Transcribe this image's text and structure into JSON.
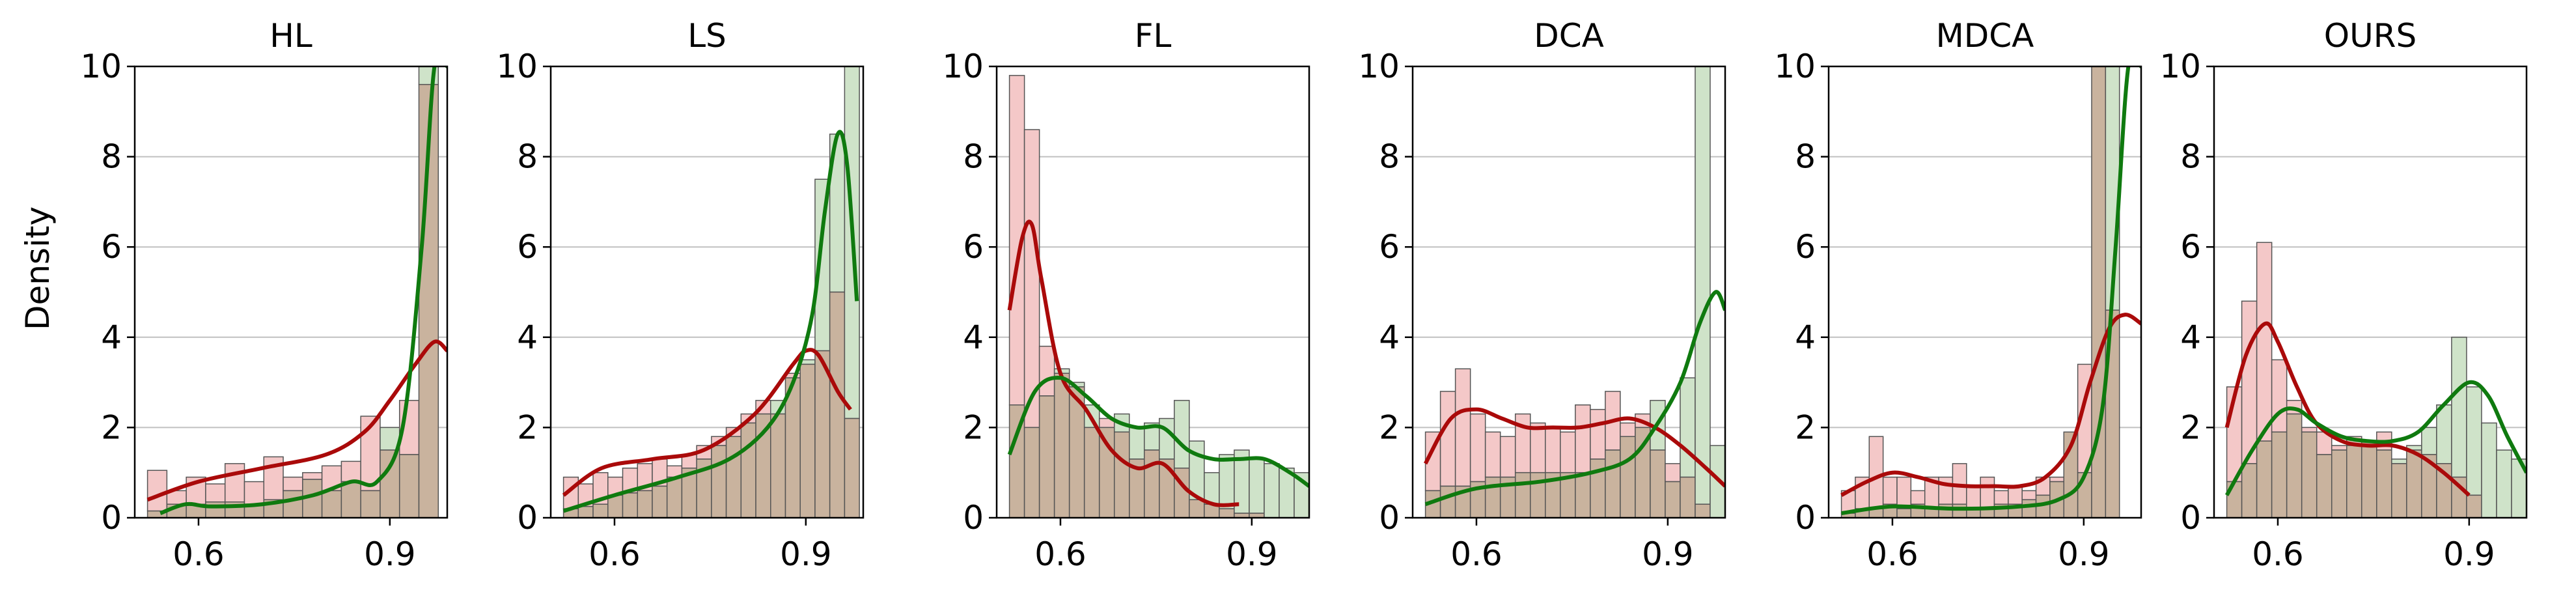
{
  "figure": {
    "ylabel": "Density",
    "colors": {
      "incorrect_kde": "#aa0a0a",
      "correct_kde": "#0f7a0f",
      "incorrect_bar": "#f4c8c8",
      "correct_bar": "#cfe3c9",
      "overlap_bar": "#c9b39e",
      "edge": "#555555",
      "grid": "#c0c0c0"
    }
  },
  "chart_data": [
    {
      "type": "bar",
      "title": "HL",
      "xlim": [
        0.5,
        0.99
      ],
      "ylim": [
        0,
        10
      ],
      "xticks": [
        0.6,
        0.9
      ],
      "xtick_labels": [
        "0.6",
        "0.9"
      ],
      "yticks": [
        0,
        2,
        4,
        6,
        8,
        10
      ],
      "ytick_labels": [
        "0",
        "2",
        "4",
        "6",
        "8",
        "10"
      ],
      "grid": "y",
      "bins_x0": 0.52,
      "bin_width": 0.0304,
      "series": [
        {
          "role": "incorrect",
          "values": [
            1.05,
            0.6,
            0.9,
            0.75,
            1.2,
            0.8,
            1.35,
            0.9,
            1.0,
            1.15,
            1.25,
            2.25,
            1.5,
            2.6,
            9.6
          ]
        },
        {
          "role": "correct",
          "values": [
            0.15,
            0.3,
            0.3,
            0.35,
            0.35,
            0.3,
            0.4,
            0.6,
            0.85,
            0.6,
            0.8,
            0.6,
            2.0,
            1.4,
            10.0
          ]
        }
      ],
      "kde": [
        {
          "role": "incorrect",
          "x": [
            0.52,
            0.6,
            0.7,
            0.8,
            0.86,
            0.9,
            0.94,
            0.97,
            0.99
          ],
          "y": [
            0.4,
            0.8,
            1.1,
            1.4,
            1.9,
            2.6,
            3.4,
            3.9,
            3.7
          ]
        },
        {
          "role": "correct",
          "x": [
            0.54,
            0.58,
            0.62,
            0.7,
            0.78,
            0.84,
            0.88,
            0.92,
            0.95,
            0.97,
            0.99
          ],
          "y": [
            0.1,
            0.3,
            0.25,
            0.3,
            0.5,
            0.8,
            0.8,
            2.0,
            6.0,
            10.0,
            10.0
          ]
        }
      ]
    },
    {
      "type": "bar",
      "title": "LS",
      "xlim": [
        0.5,
        0.99
      ],
      "ylim": [
        0,
        10
      ],
      "xticks": [
        0.6,
        0.9
      ],
      "xtick_labels": [
        "0.6",
        "0.9"
      ],
      "yticks": [
        0,
        2,
        4,
        6,
        8,
        10
      ],
      "ytick_labels": [
        "0",
        "2",
        "4",
        "6",
        "8",
        "10"
      ],
      "grid": "y",
      "bins_x0": 0.52,
      "bin_width": 0.0232,
      "series": [
        {
          "role": "incorrect",
          "values": [
            0.9,
            0.75,
            1.0,
            0.9,
            1.1,
            1.2,
            1.3,
            1.15,
            1.4,
            1.6,
            1.8,
            2.0,
            2.3,
            2.6,
            2.3,
            3.2,
            3.4,
            3.7,
            5.0,
            2.2
          ]
        },
        {
          "role": "correct",
          "values": [
            0.2,
            0.25,
            0.3,
            0.5,
            0.55,
            0.6,
            0.7,
            0.9,
            1.1,
            1.3,
            1.6,
            1.8,
            2.1,
            2.3,
            2.6,
            3.1,
            3.5,
            7.5,
            8.5,
            10.0
          ]
        }
      ],
      "kde": [
        {
          "role": "incorrect",
          "x": [
            0.52,
            0.58,
            0.66,
            0.74,
            0.82,
            0.88,
            0.9,
            0.92,
            0.95,
            0.97
          ],
          "y": [
            0.5,
            1.1,
            1.3,
            1.5,
            2.3,
            3.4,
            3.7,
            3.6,
            2.8,
            2.4
          ]
        },
        {
          "role": "correct",
          "x": [
            0.52,
            0.6,
            0.7,
            0.78,
            0.84,
            0.88,
            0.91,
            0.93,
            0.95,
            0.965,
            0.98
          ],
          "y": [
            0.15,
            0.5,
            0.9,
            1.3,
            2.0,
            3.0,
            4.5,
            6.8,
            8.5,
            7.8,
            4.8
          ]
        }
      ]
    },
    {
      "type": "bar",
      "title": "FL",
      "xlim": [
        0.5,
        0.99
      ],
      "ylim": [
        0,
        10
      ],
      "xticks": [
        0.6,
        0.9
      ],
      "xtick_labels": [
        "0.6",
        "0.9"
      ],
      "yticks": [
        0,
        2,
        4,
        6,
        8,
        10
      ],
      "ytick_labels": [
        "0",
        "2",
        "4",
        "6",
        "8",
        "10"
      ],
      "grid": "y",
      "bins_x0": 0.52,
      "bin_width": 0.0235,
      "series": [
        {
          "role": "incorrect",
          "values": [
            9.8,
            8.6,
            3.8,
            3.2,
            2.9,
            2.0,
            2.2,
            1.9,
            1.3,
            1.5,
            1.3,
            1.1,
            0.4,
            0.3,
            0.2,
            0.1,
            0.1,
            0.0,
            0.0,
            0.0
          ]
        },
        {
          "role": "correct",
          "values": [
            2.5,
            2.0,
            2.7,
            3.3,
            3.0,
            2.5,
            2.0,
            2.3,
            2.0,
            2.1,
            2.2,
            2.6,
            1.7,
            1.0,
            1.4,
            1.5,
            1.3,
            1.2,
            1.1,
            1.0
          ]
        }
      ],
      "kde": [
        {
          "role": "incorrect",
          "x": [
            0.52,
            0.54,
            0.555,
            0.57,
            0.6,
            0.64,
            0.68,
            0.72,
            0.76,
            0.8,
            0.84,
            0.88
          ],
          "y": [
            4.6,
            6.2,
            6.5,
            5.3,
            3.2,
            2.4,
            1.5,
            1.1,
            1.2,
            0.6,
            0.3,
            0.3
          ]
        },
        {
          "role": "correct",
          "x": [
            0.52,
            0.56,
            0.6,
            0.64,
            0.68,
            0.72,
            0.76,
            0.8,
            0.84,
            0.88,
            0.92,
            0.96,
            0.99
          ],
          "y": [
            1.4,
            2.8,
            3.1,
            2.7,
            2.2,
            2.0,
            2.0,
            1.5,
            1.3,
            1.3,
            1.3,
            1.0,
            0.7
          ]
        }
      ]
    },
    {
      "type": "bar",
      "title": "DCA",
      "xlim": [
        0.5,
        0.99
      ],
      "ylim": [
        0,
        10
      ],
      "xticks": [
        0.6,
        0.9
      ],
      "xtick_labels": [
        "0.6",
        "0.9"
      ],
      "yticks": [
        0,
        2,
        4,
        6,
        8,
        10
      ],
      "ytick_labels": [
        "0",
        "2",
        "4",
        "6",
        "8",
        "10"
      ],
      "grid": "y",
      "bins_x0": 0.52,
      "bin_width": 0.0235,
      "series": [
        {
          "role": "incorrect",
          "values": [
            1.9,
            2.8,
            3.3,
            2.3,
            1.9,
            1.8,
            2.3,
            2.1,
            2.0,
            1.9,
            2.5,
            2.4,
            2.8,
            2.1,
            2.3,
            1.5,
            1.2,
            0.9,
            0.3,
            0.0
          ]
        },
        {
          "role": "correct",
          "values": [
            0.6,
            0.7,
            0.7,
            0.8,
            0.9,
            0.9,
            1.0,
            1.0,
            1.0,
            1.0,
            1.0,
            1.3,
            1.5,
            1.8,
            2.0,
            2.6,
            0.8,
            3.1,
            10.0,
            1.6
          ]
        }
      ],
      "kde": [
        {
          "role": "incorrect",
          "x": [
            0.52,
            0.56,
            0.6,
            0.64,
            0.68,
            0.72,
            0.76,
            0.8,
            0.84,
            0.88,
            0.92,
            0.96,
            0.99
          ],
          "y": [
            1.2,
            2.2,
            2.4,
            2.2,
            2.0,
            2.0,
            2.0,
            2.1,
            2.2,
            2.0,
            1.6,
            1.1,
            0.7
          ]
        },
        {
          "role": "correct",
          "x": [
            0.52,
            0.6,
            0.7,
            0.78,
            0.84,
            0.88,
            0.92,
            0.95,
            0.975,
            0.99
          ],
          "y": [
            0.3,
            0.65,
            0.8,
            1.0,
            1.3,
            2.0,
            3.0,
            4.3,
            5.0,
            4.6
          ]
        }
      ]
    },
    {
      "type": "bar",
      "title": "MDCA",
      "xlim": [
        0.5,
        0.99
      ],
      "ylim": [
        0,
        10
      ],
      "xticks": [
        0.6,
        0.9
      ],
      "xtick_labels": [
        "0.6",
        "0.9"
      ],
      "yticks": [
        0,
        2,
        4,
        6,
        8,
        10
      ],
      "ytick_labels": [
        "0",
        "2",
        "4",
        "6",
        "8",
        "10"
      ],
      "grid": "y",
      "bins_x0": 0.52,
      "bin_width": 0.0218,
      "series": [
        {
          "role": "incorrect",
          "values": [
            0.6,
            0.9,
            1.8,
            0.9,
            0.9,
            0.6,
            0.9,
            0.9,
            1.2,
            0.7,
            0.9,
            0.6,
            0.7,
            0.6,
            0.9,
            0.9,
            1.9,
            3.4,
            10.0,
            4.6
          ]
        },
        {
          "role": "correct",
          "values": [
            0.1,
            0.2,
            0.2,
            0.3,
            0.2,
            0.3,
            0.2,
            0.3,
            0.3,
            0.2,
            0.2,
            0.3,
            0.3,
            0.4,
            0.5,
            0.8,
            1.9,
            1.0,
            10.0,
            10.0
          ]
        }
      ],
      "kde": [
        {
          "role": "incorrect",
          "x": [
            0.52,
            0.56,
            0.6,
            0.64,
            0.68,
            0.72,
            0.76,
            0.8,
            0.84,
            0.88,
            0.91,
            0.94,
            0.965,
            0.99
          ],
          "y": [
            0.5,
            0.8,
            1.0,
            0.9,
            0.75,
            0.7,
            0.7,
            0.7,
            0.9,
            1.6,
            3.0,
            4.2,
            4.5,
            4.3
          ]
        },
        {
          "role": "correct",
          "x": [
            0.52,
            0.6,
            0.7,
            0.8,
            0.86,
            0.9,
            0.93,
            0.95,
            0.97,
            0.99
          ],
          "y": [
            0.1,
            0.25,
            0.2,
            0.25,
            0.4,
            0.9,
            2.5,
            6.0,
            10.0,
            10.0
          ]
        }
      ]
    },
    {
      "type": "bar",
      "title": "OURS",
      "xlim": [
        0.5,
        0.99
      ],
      "ylim": [
        0,
        10
      ],
      "xticks": [
        0.6,
        0.9
      ],
      "xtick_labels": [
        "0.6",
        "0.9"
      ],
      "yticks": [
        0,
        2,
        4,
        6,
        8,
        10
      ],
      "ytick_labels": [
        "0",
        "2",
        "4",
        "6",
        "8",
        "10"
      ],
      "grid": "y",
      "bins_x0": 0.52,
      "bin_width": 0.0235,
      "series": [
        {
          "role": "incorrect",
          "values": [
            2.9,
            4.8,
            6.1,
            3.5,
            2.6,
            2.0,
            1.9,
            1.6,
            1.8,
            1.7,
            1.9,
            1.2,
            1.5,
            1.4,
            1.2,
            0.9,
            0.5,
            0.0,
            0.0,
            0.0
          ]
        },
        {
          "role": "correct",
          "values": [
            0.8,
            1.2,
            1.7,
            1.9,
            2.3,
            1.9,
            1.4,
            1.5,
            1.6,
            1.7,
            1.5,
            1.3,
            1.6,
            2.0,
            2.5,
            4.0,
            2.9,
            2.1,
            1.5,
            1.3
          ]
        }
      ],
      "kde": [
        {
          "role": "incorrect",
          "x": [
            0.52,
            0.55,
            0.58,
            0.6,
            0.63,
            0.66,
            0.7,
            0.74,
            0.78,
            0.82,
            0.86,
            0.9
          ],
          "y": [
            2.0,
            3.6,
            4.3,
            3.9,
            2.9,
            2.1,
            1.7,
            1.6,
            1.6,
            1.4,
            1.0,
            0.5
          ]
        },
        {
          "role": "correct",
          "x": [
            0.52,
            0.56,
            0.6,
            0.63,
            0.66,
            0.7,
            0.74,
            0.78,
            0.82,
            0.86,
            0.9,
            0.93,
            0.96,
            0.99
          ],
          "y": [
            0.5,
            1.5,
            2.3,
            2.4,
            2.1,
            1.8,
            1.7,
            1.7,
            1.9,
            2.5,
            3.0,
            2.7,
            1.8,
            1.0
          ]
        }
      ]
    }
  ]
}
